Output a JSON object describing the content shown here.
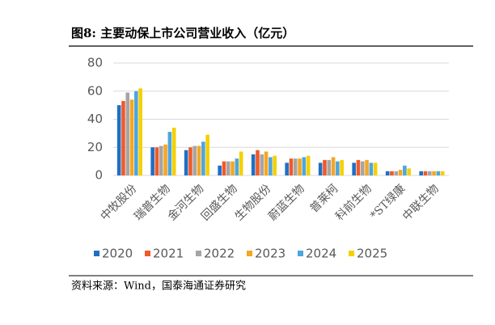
{
  "chart_data": {
    "type": "bar",
    "title": "图8:  主要动保上市公司营业收入（亿元）",
    "source": "资料来源：Wind，国泰海通证券研究",
    "categories": [
      "中牧股份",
      "瑞普生物",
      "金河生物",
      "回盛生物",
      "生物股份",
      "蔚蓝生物",
      "普莱柯",
      "科前生物",
      "*ST绿康",
      "中联生物"
    ],
    "series": [
      {
        "name": "2020",
        "color": "#1f6fc5",
        "values": [
          50,
          20,
          18,
          7,
          15,
          9,
          9,
          9,
          3,
          3
        ]
      },
      {
        "name": "2021",
        "color": "#f05a28",
        "values": [
          53,
          20,
          20,
          10,
          18,
          12,
          11,
          11,
          3,
          3
        ]
      },
      {
        "name": "2022",
        "color": "#a5a5a5",
        "values": [
          59,
          21,
          21,
          10,
          15,
          12,
          11,
          10,
          3,
          3
        ]
      },
      {
        "name": "2023",
        "color": "#f5a623",
        "values": [
          54,
          22,
          21,
          10,
          17,
          12,
          13,
          11,
          4,
          3
        ]
      },
      {
        "name": "2024",
        "color": "#4ea6dc",
        "values": [
          60,
          31,
          24,
          12,
          13,
          13,
          10,
          9,
          7,
          3
        ]
      },
      {
        "name": "2025",
        "color": "#f5d000",
        "values": [
          62,
          34,
          29,
          17,
          14,
          14,
          11,
          9,
          5,
          3
        ]
      }
    ],
    "ylim": [
      0,
      80
    ],
    "yticks": [
      0,
      20,
      40,
      60,
      80
    ],
    "grid": true
  }
}
